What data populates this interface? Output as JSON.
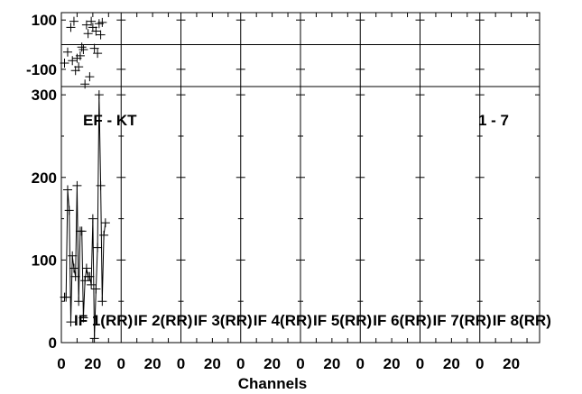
{
  "chart_data": {
    "type": "scatter",
    "xlabel": "Channels",
    "baseline": "EF - KT",
    "correlation": "1 - 7",
    "x_tick_labels": [
      "0",
      "20"
    ],
    "phase_panel": {
      "ylim": [
        -170,
        130
      ],
      "y_ticks": [
        100,
        -100
      ],
      "x": [
        2,
        4,
        6,
        7,
        8,
        9,
        10,
        11,
        12,
        13,
        14,
        15,
        16,
        17,
        18,
        19,
        20,
        21,
        22,
        23,
        24,
        25,
        26
      ],
      "y": [
        -75,
        -30,
        70,
        -65,
        95,
        -105,
        -55,
        -90,
        -45,
        -10,
        -20,
        -160,
        80,
        45,
        -130,
        95,
        70,
        -15,
        55,
        -35,
        85,
        40,
        90
      ]
    },
    "amplitude_panel": {
      "ylim": [
        0,
        310
      ],
      "y_ticks": [
        0,
        100,
        200,
        300
      ],
      "x": [
        2,
        3,
        4,
        5,
        6,
        7,
        8,
        9,
        10,
        11,
        12,
        13,
        14,
        15,
        16,
        17,
        18,
        19,
        20,
        21,
        22,
        23,
        24,
        25,
        26,
        27,
        28
      ],
      "y": [
        55,
        55,
        185,
        160,
        25,
        105,
        90,
        80,
        190,
        50,
        135,
        135,
        30,
        75,
        90,
        80,
        80,
        70,
        150,
        5,
        65,
        115,
        300,
        190,
        50,
        130,
        145
      ]
    },
    "panel_labels": [
      "IF 1(RR)",
      "IF 2(RR)",
      "IF 3(RR)",
      "IF 4(RR)",
      "IF 5(RR)",
      "IF 6(RR)",
      "IF 7(RR)",
      "IF 8(RR)"
    ]
  }
}
